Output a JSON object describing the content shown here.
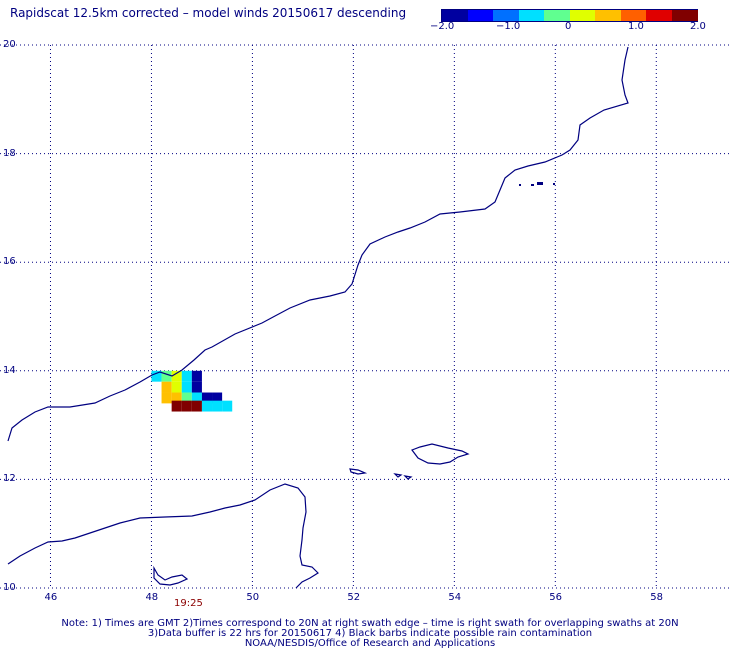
{
  "title": "Rapidscat 12.5km corrected – model winds 20150617 descending",
  "colorbar": {
    "colors": [
      "#0000a0",
      "#0000ff",
      "#0070ff",
      "#00e0ff",
      "#60ff90",
      "#e0ff00",
      "#ffc000",
      "#ff6000",
      "#e00000",
      "#800000"
    ],
    "labels": [
      "−2.0",
      "−1.0",
      "0",
      "1.0",
      "2.0"
    ],
    "range": [
      -2.0,
      2.0
    ]
  },
  "axes": {
    "x_ticks": [
      "46",
      "48",
      "50",
      "52",
      "54",
      "56",
      "58"
    ],
    "y_ticks": [
      "10",
      "12",
      "14",
      "16",
      "18",
      "20"
    ],
    "x_range": [
      45,
      59.5
    ],
    "y_range": [
      10,
      20
    ]
  },
  "swath_time": "19:25",
  "cells": [
    {
      "lon": 48.1,
      "lat": 13.9,
      "value": -0.8
    },
    {
      "lon": 48.3,
      "lat": 13.9,
      "value": -0.2
    },
    {
      "lon": 48.5,
      "lat": 13.9,
      "value": 0.0
    },
    {
      "lon": 48.7,
      "lat": 13.9,
      "value": -0.6
    },
    {
      "lon": 48.9,
      "lat": 13.9,
      "value": -2.0
    },
    {
      "lon": 48.3,
      "lat": 13.7,
      "value": 0.4
    },
    {
      "lon": 48.5,
      "lat": 13.7,
      "value": 0.2
    },
    {
      "lon": 48.7,
      "lat": 13.7,
      "value": -0.8
    },
    {
      "lon": 48.9,
      "lat": 13.7,
      "value": -1.9
    },
    {
      "lon": 48.3,
      "lat": 13.5,
      "value": 0.5
    },
    {
      "lon": 48.5,
      "lat": 13.5,
      "value": 0.5
    },
    {
      "lon": 48.7,
      "lat": 13.5,
      "value": -0.3
    },
    {
      "lon": 48.9,
      "lat": 13.5,
      "value": -0.8
    },
    {
      "lon": 49.1,
      "lat": 13.5,
      "value": -2.0
    },
    {
      "lon": 49.3,
      "lat": 13.5,
      "value": -1.6
    },
    {
      "lon": 48.5,
      "lat": 13.35,
      "value": 2.0
    },
    {
      "lon": 48.7,
      "lat": 13.35,
      "value": 2.0
    },
    {
      "lon": 48.9,
      "lat": 13.35,
      "value": 1.8
    },
    {
      "lon": 49.1,
      "lat": 13.35,
      "value": -0.6
    },
    {
      "lon": 49.3,
      "lat": 13.35,
      "value": -0.5
    },
    {
      "lon": 49.5,
      "lat": 13.35,
      "value": -0.7
    }
  ],
  "notes": {
    "line1": "Note: 1) Times are GMT 2)Times correspond to 20N at right swath edge – time is right swath for overlapping swaths at 20N",
    "line2": "3)Data buffer is 22 hrs for 20150617 4) Black barbs indicate possible rain contamination",
    "line3": "NOAA/NESDIS/Office of Research and Applications"
  }
}
